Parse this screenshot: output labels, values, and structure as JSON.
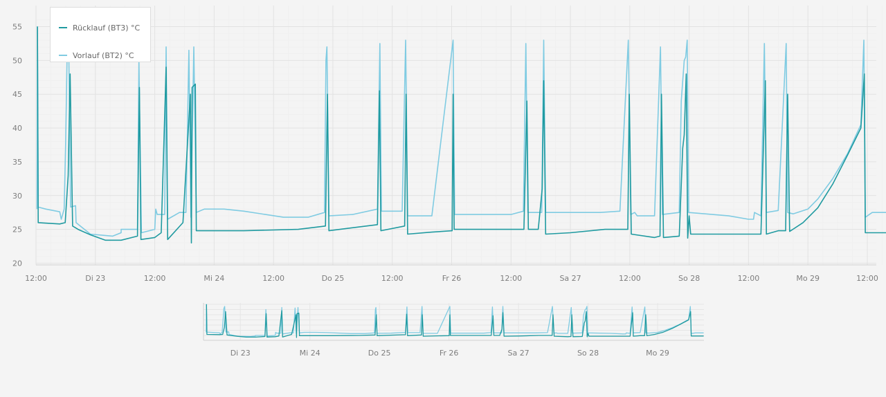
{
  "chart_data": [
    {
      "type": "line",
      "role": "main",
      "ylim": [
        20,
        56
      ],
      "xlim": [
        0,
        172
      ],
      "yticks": [
        20,
        25,
        30,
        35,
        40,
        45,
        50,
        55
      ],
      "xticks": [
        {
          "t": 0,
          "label": "12:00"
        },
        {
          "t": 12,
          "label": "Di 23"
        },
        {
          "t": 24,
          "label": "12:00"
        },
        {
          "t": 36,
          "label": "Mi 24"
        },
        {
          "t": 48,
          "label": "12:00"
        },
        {
          "t": 60,
          "label": "Do 25"
        },
        {
          "t": 72,
          "label": "12:00"
        },
        {
          "t": 84,
          "label": "Fr 26"
        },
        {
          "t": 96,
          "label": "12:00"
        },
        {
          "t": 108,
          "label": "Sa 27"
        },
        {
          "t": 120,
          "label": "12:00"
        },
        {
          "t": 132,
          "label": "So 28"
        },
        {
          "t": 144,
          "label": "12:00"
        },
        {
          "t": 156,
          "label": "Mo 29"
        },
        {
          "t": 168,
          "label": "12:00"
        }
      ],
      "grid": true,
      "legend": "top-left",
      "series": [
        {
          "name": "Rücklauf (BT3) °C",
          "color": "#1f9aa0",
          "points": [
            [
              0.3,
              55
            ],
            [
              0.45,
              26
            ],
            [
              4.8,
              25.8
            ],
            [
              5.9,
              26
            ],
            [
              6.5,
              33
            ],
            [
              6.9,
              48
            ],
            [
              7.4,
              25.5
            ],
            [
              8.5,
              25
            ],
            [
              11,
              24.2
            ],
            [
              14,
              23.4
            ],
            [
              17.2,
              23.4
            ],
            [
              20.5,
              24
            ],
            [
              20.9,
              46
            ],
            [
              21.2,
              23.5
            ],
            [
              24,
              23.8
            ],
            [
              25.3,
              24.5
            ],
            [
              26.3,
              49
            ],
            [
              26.6,
              23.5
            ],
            [
              29.7,
              26
            ],
            [
              31.2,
              45
            ],
            [
              31.4,
              23
            ],
            [
              31.55,
              46
            ],
            [
              32.2,
              46.5
            ],
            [
              32.4,
              24.8
            ],
            [
              42,
              24.8
            ],
            [
              53,
              25
            ],
            [
              58.5,
              25.5
            ],
            [
              58.9,
              45
            ],
            [
              59.2,
              24.8
            ],
            [
              69,
              25.7
            ],
            [
              69.4,
              45.5
            ],
            [
              69.7,
              24.8
            ],
            [
              74.5,
              25.5
            ],
            [
              74.8,
              45
            ],
            [
              75.1,
              24.3
            ],
            [
              80,
              24.6
            ],
            [
              84.1,
              24.8
            ],
            [
              84.3,
              45
            ],
            [
              84.5,
              25
            ],
            [
              96,
              25
            ],
            [
              98.6,
              25
            ],
            [
              99.2,
              44
            ],
            [
              99.5,
              25
            ],
            [
              101.5,
              25
            ],
            [
              102.3,
              31
            ],
            [
              102.6,
              47
            ],
            [
              103,
              24.3
            ],
            [
              108,
              24.5
            ],
            [
              115,
              25
            ],
            [
              119.6,
              25
            ],
            [
              119.9,
              45
            ],
            [
              120.3,
              24.3
            ],
            [
              125,
              23.8
            ],
            [
              126.1,
              24
            ],
            [
              126.4,
              45
            ],
            [
              126.8,
              23.8
            ],
            [
              130,
              24
            ],
            [
              130.7,
              37
            ],
            [
              131,
              39
            ],
            [
              131.4,
              48
            ],
            [
              131.7,
              23.7
            ],
            [
              132,
              27
            ],
            [
              132.3,
              24.3
            ],
            [
              144,
              24.3
            ],
            [
              146.5,
              24.3
            ],
            [
              147.4,
              47
            ],
            [
              147.6,
              24.3
            ],
            [
              150,
              24.8
            ],
            [
              151.5,
              24.8
            ],
            [
              151.9,
              45
            ],
            [
              152.3,
              24.7
            ],
            [
              155,
              26
            ],
            [
              158,
              28.2
            ],
            [
              161,
              31.7
            ],
            [
              164,
              36
            ],
            [
              166.7,
              40
            ],
            [
              167.4,
              48
            ],
            [
              167.6,
              24.5
            ],
            [
              171.9,
              24.5
            ]
          ]
        },
        {
          "name": "Vorlauf (BT2) °C",
          "color": "#7fcbe2",
          "points": [
            [
              0.2,
              28
            ],
            [
              0.3,
              55
            ],
            [
              0.45,
              28.3
            ],
            [
              2,
              28
            ],
            [
              4.8,
              27.6
            ],
            [
              5.1,
              26.5
            ],
            [
              5.7,
              28
            ],
            [
              6,
              38
            ],
            [
              6.3,
              51
            ],
            [
              6.6,
              53
            ],
            [
              7,
              28.3
            ],
            [
              8,
              28.5
            ],
            [
              8.1,
              26
            ],
            [
              11,
              24.3
            ],
            [
              15.5,
              24
            ],
            [
              17.2,
              24.5
            ],
            [
              17.2,
              25
            ],
            [
              20.5,
              25
            ],
            [
              20.8,
              50
            ],
            [
              21.3,
              24.5
            ],
            [
              24,
              25
            ],
            [
              24.2,
              28
            ],
            [
              24.5,
              27.2
            ],
            [
              26,
              27.2
            ],
            [
              26.3,
              52
            ],
            [
              26.6,
              26.5
            ],
            [
              29,
              27.5
            ],
            [
              30.3,
              27.5
            ],
            [
              30.9,
              51.5
            ],
            [
              31.3,
              26.8
            ],
            [
              31.9,
              52
            ],
            [
              32.4,
              27.5
            ],
            [
              34,
              28
            ],
            [
              38,
              28
            ],
            [
              42,
              27.7
            ],
            [
              50,
              26.8
            ],
            [
              55,
              26.8
            ],
            [
              58.3,
              27.5
            ],
            [
              58.6,
              50
            ],
            [
              58.8,
              52
            ],
            [
              59.2,
              27
            ],
            [
              64,
              27.2
            ],
            [
              69,
              28
            ],
            [
              69.5,
              52.5
            ],
            [
              69.8,
              27.7
            ],
            [
              74,
              27.7
            ],
            [
              74.7,
              53
            ],
            [
              75.1,
              27
            ],
            [
              80,
              27
            ],
            [
              84.3,
              53
            ],
            [
              84.6,
              27.2
            ],
            [
              96,
              27.2
            ],
            [
              98.5,
              27.7
            ],
            [
              99,
              52.5
            ],
            [
              99.4,
              27.5
            ],
            [
              102.2,
              27.5
            ],
            [
              102.6,
              53
            ],
            [
              103,
              27.5
            ],
            [
              110,
              27.5
            ],
            [
              114,
              27.5
            ],
            [
              118,
              27.7
            ],
            [
              119.7,
              53
            ],
            [
              120.2,
              27.2
            ],
            [
              121,
              27.5
            ],
            [
              121.5,
              27
            ],
            [
              125,
              27
            ],
            [
              126.2,
              52
            ],
            [
              126.6,
              27.2
            ],
            [
              130,
              27.5
            ],
            [
              130.4,
              44
            ],
            [
              131,
              50
            ],
            [
              131.3,
              50.5
            ],
            [
              131.6,
              53
            ],
            [
              131.9,
              27.5
            ],
            [
              140,
              27
            ],
            [
              144,
              26.5
            ],
            [
              145,
              26.5
            ],
            [
              145.2,
              27.5
            ],
            [
              146.5,
              27
            ],
            [
              147.2,
              52.5
            ],
            [
              147.6,
              27.5
            ],
            [
              150,
              27.8
            ],
            [
              151.6,
              52.5
            ],
            [
              151.9,
              27.5
            ],
            [
              153,
              27.3
            ],
            [
              156,
              28
            ],
            [
              158,
              29.5
            ],
            [
              161,
              32.5
            ],
            [
              164,
              36.2
            ],
            [
              166.7,
              40.5
            ],
            [
              167.3,
              53
            ],
            [
              167.6,
              26.8
            ],
            [
              169,
              27.5
            ],
            [
              171.9,
              27.5
            ]
          ]
        }
      ]
    },
    {
      "type": "line",
      "role": "navigator",
      "xticks": [
        {
          "t": 12,
          "label": "Di 23"
        },
        {
          "t": 36,
          "label": "Mi 24"
        },
        {
          "t": 60,
          "label": "Do 25"
        },
        {
          "t": 84,
          "label": "Fr 26"
        },
        {
          "t": 108,
          "label": "Sa 27"
        },
        {
          "t": 132,
          "label": "So 28"
        },
        {
          "t": 156,
          "label": "Mo 29"
        }
      ]
    }
  ]
}
